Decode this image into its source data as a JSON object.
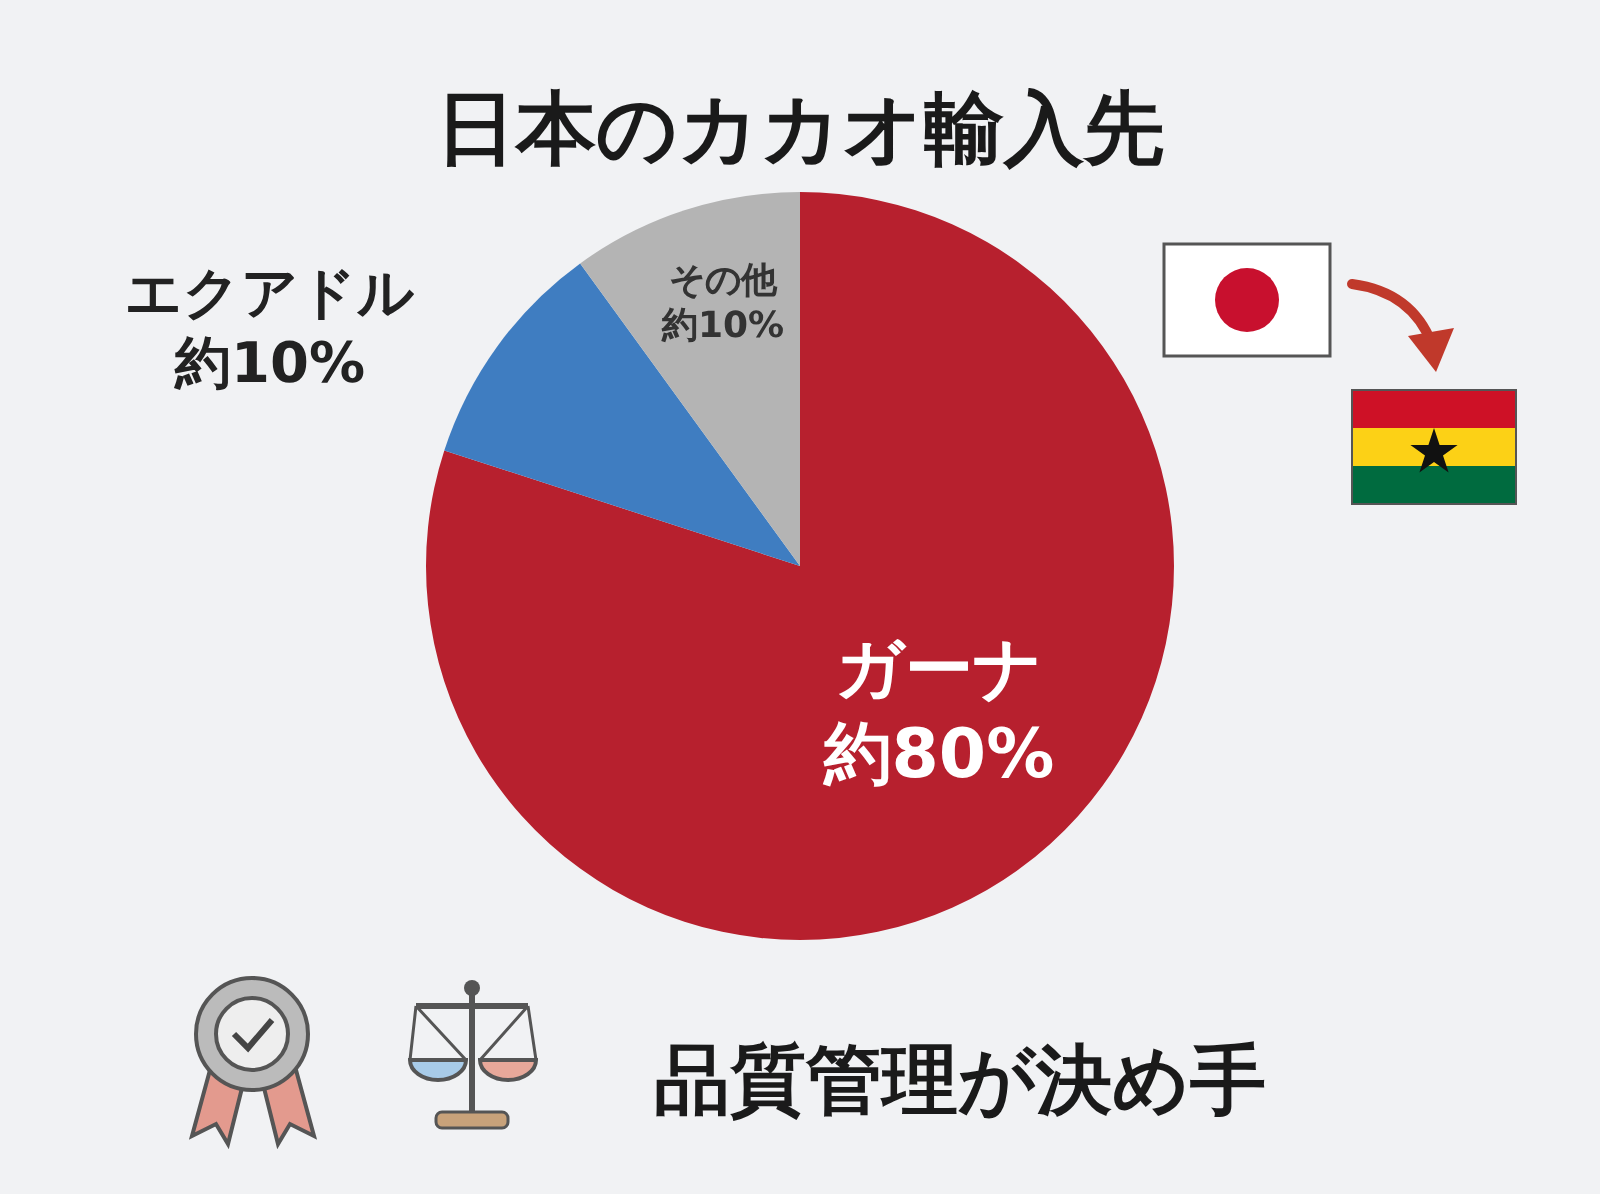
{
  "chart_data": {
    "type": "pie",
    "title": "日本のカカオ輸入先",
    "categories": [
      "ガーナ",
      "エクアドル",
      "その他"
    ],
    "values": [
      80,
      10,
      10
    ],
    "value_labels": [
      "約80%",
      "約10%",
      "約10%"
    ],
    "colors": [
      "#b7202e",
      "#3f7dc1",
      "#b4b4b4"
    ],
    "annotations": [
      "品質管理が決め手"
    ]
  }
}
